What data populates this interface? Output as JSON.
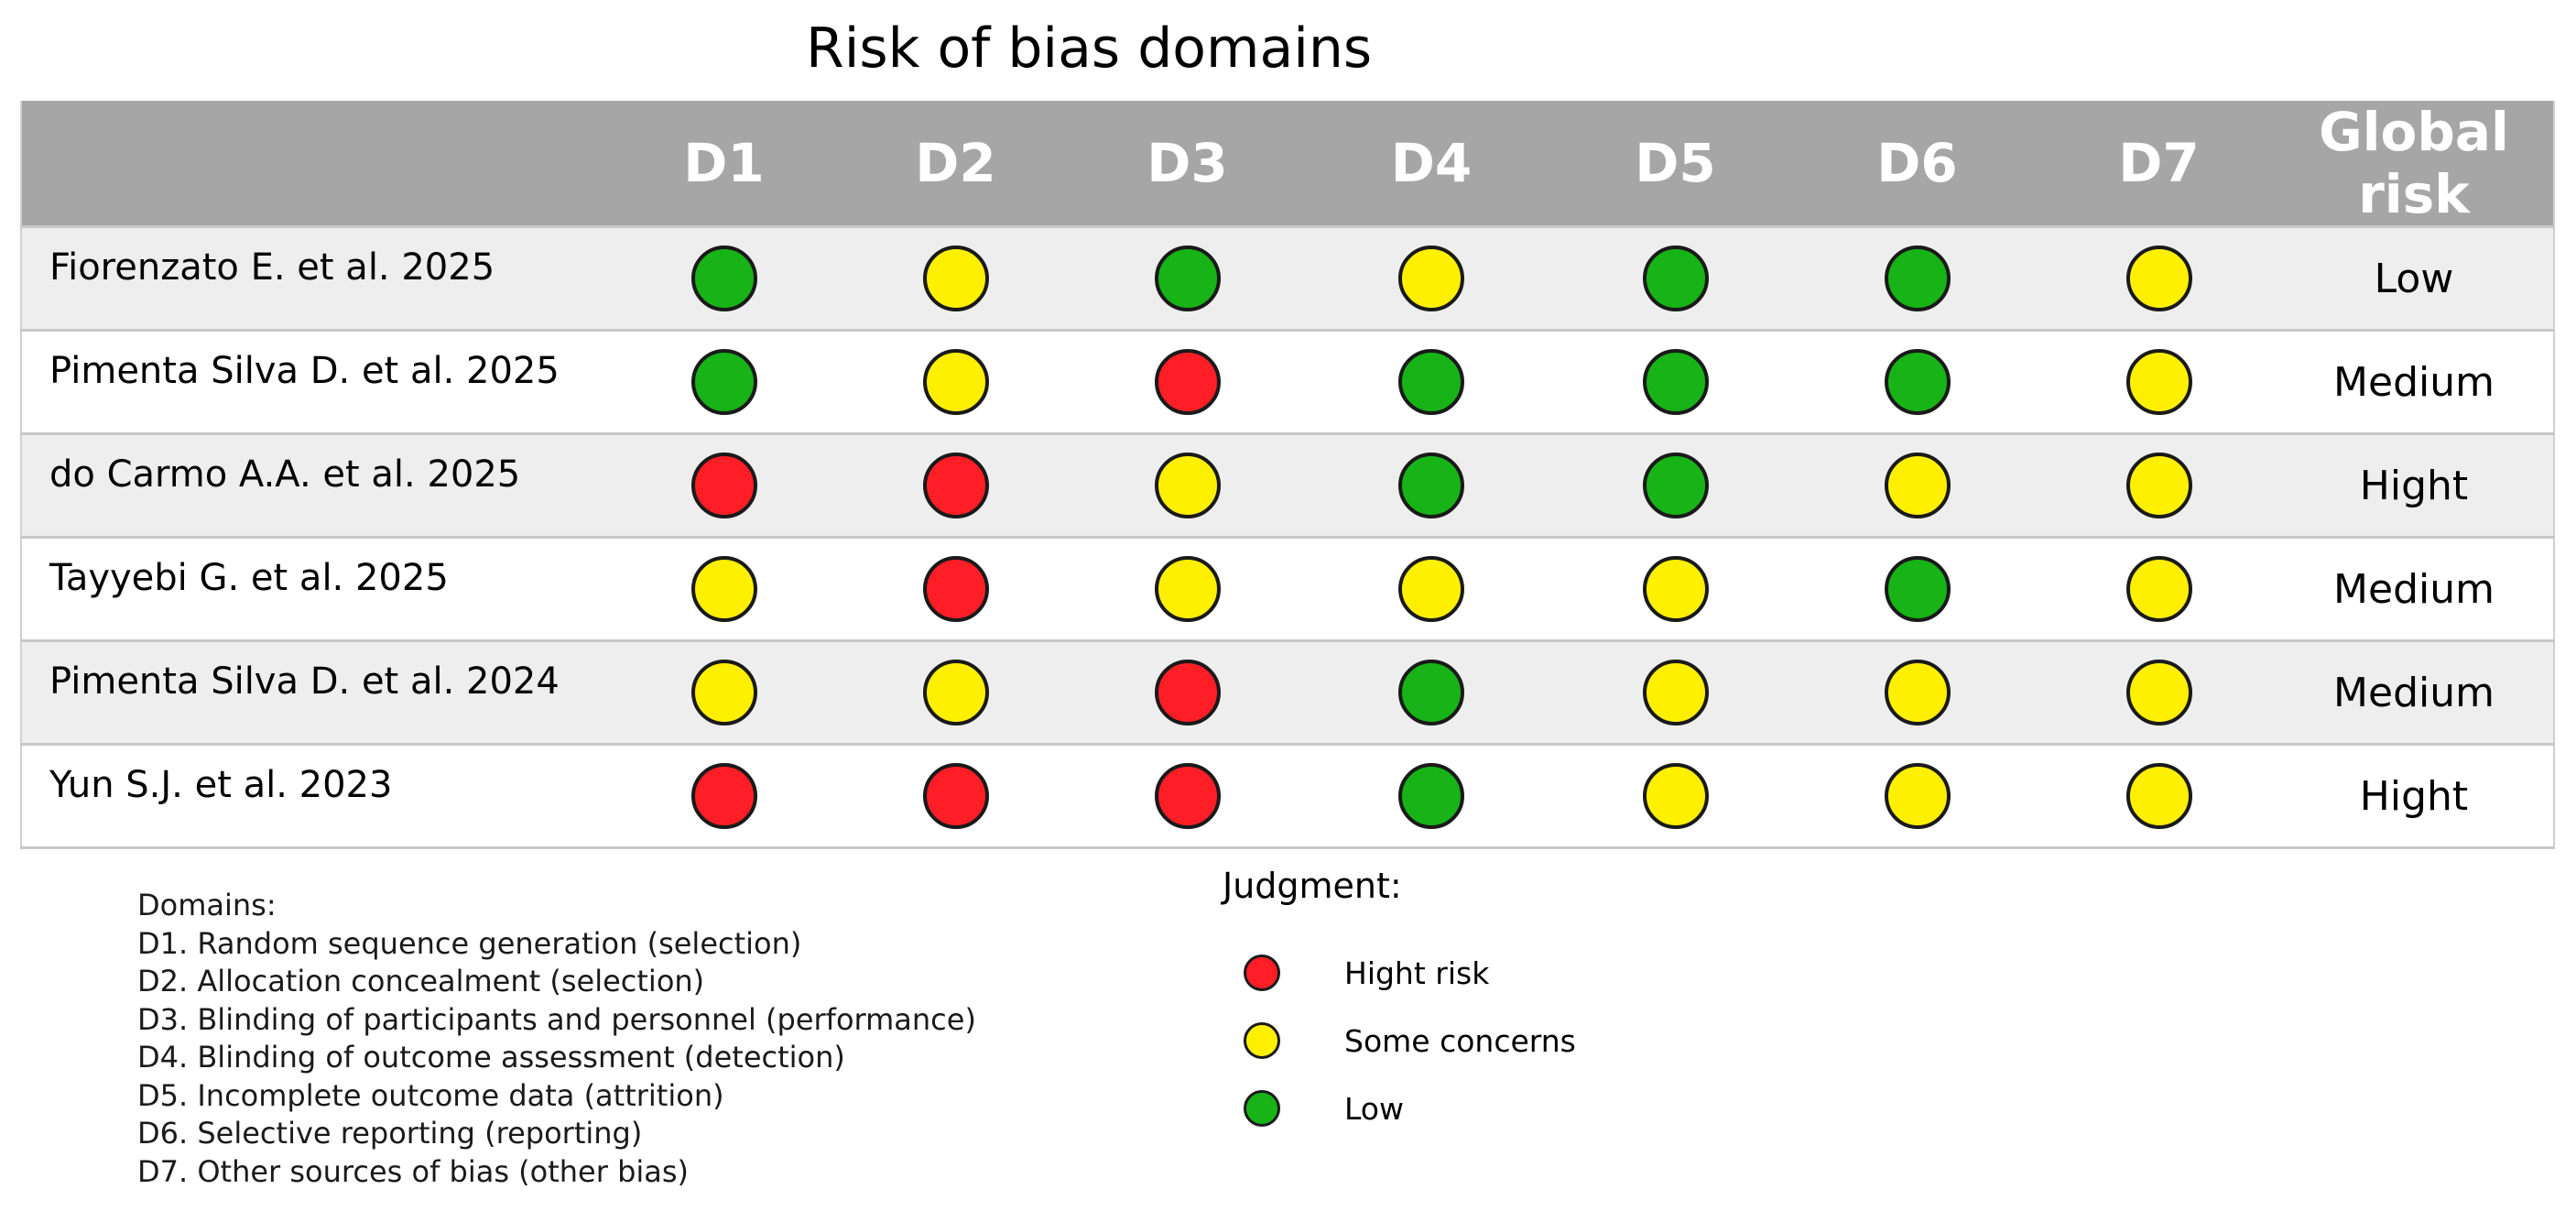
{
  "title": "Risk of bias domains",
  "colors": {
    "high": "#ff1e26",
    "some": "#fff000",
    "low": "#17b317",
    "header_bg": "#a6a6a6"
  },
  "table": {
    "headers": [
      "",
      "D1",
      "D2",
      "D3",
      "D4",
      "D5",
      "D6",
      "D7",
      "Global risk"
    ],
    "rows": [
      {
        "study": "Fiorenzato E. et al. 2025",
        "judgments": [
          "low",
          "some",
          "low",
          "some",
          "low",
          "low",
          "some"
        ],
        "global": "Low"
      },
      {
        "study": "Pimenta Silva D. et al. 2025",
        "judgments": [
          "low",
          "some",
          "high",
          "low",
          "low",
          "low",
          "some"
        ],
        "global": "Medium"
      },
      {
        "study": "do Carmo A.A. et al. 2025",
        "judgments": [
          "high",
          "high",
          "some",
          "low",
          "low",
          "some",
          "some"
        ],
        "global": "Hight"
      },
      {
        "study": "Tayyebi G. et al. 2025",
        "judgments": [
          "some",
          "high",
          "some",
          "some",
          "some",
          "low",
          "some"
        ],
        "global": "Medium"
      },
      {
        "study": "Pimenta Silva D. et al. 2024",
        "judgments": [
          "some",
          "some",
          "high",
          "low",
          "some",
          "some",
          "some"
        ],
        "global": "Medium"
      },
      {
        "study": "Yun S.J. et al. 2023",
        "judgments": [
          "high",
          "high",
          "high",
          "low",
          "some",
          "some",
          "some"
        ],
        "global": "Hight"
      }
    ]
  },
  "domains": {
    "heading": "Domains:",
    "items": [
      "D1. Random sequence generation (selection)",
      "D2. Allocation concealment (selection)",
      "D3. Blinding of participants and personnel (performance)",
      "D4. Blinding of outcome assessment (detection)",
      "D5. Incomplete outcome data (attrition)",
      "D6. Selective reporting (reporting)",
      "D7. Other sources of bias (other bias)"
    ]
  },
  "judgment": {
    "heading": "Judgment:",
    "items": [
      {
        "key": "high",
        "label": "Hight risk"
      },
      {
        "key": "some",
        "label": "Some concerns"
      },
      {
        "key": "low",
        "label": "Low"
      }
    ]
  }
}
